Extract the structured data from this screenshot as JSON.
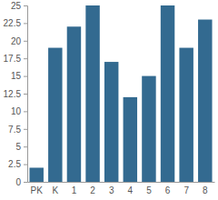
{
  "chart_data": {
    "type": "bar",
    "categories": [
      "PK",
      "K",
      "1",
      "2",
      "3",
      "4",
      "5",
      "6",
      "7",
      "8"
    ],
    "values": [
      2,
      19,
      22,
      25,
      17,
      12,
      15,
      25,
      19,
      23
    ],
    "color": "#336a90",
    "ylim": [
      0,
      25
    ],
    "yticks": [
      0,
      2.5,
      5,
      7.5,
      10,
      12.5,
      15,
      17.5,
      20,
      22.5,
      25
    ],
    "grid": false
  }
}
